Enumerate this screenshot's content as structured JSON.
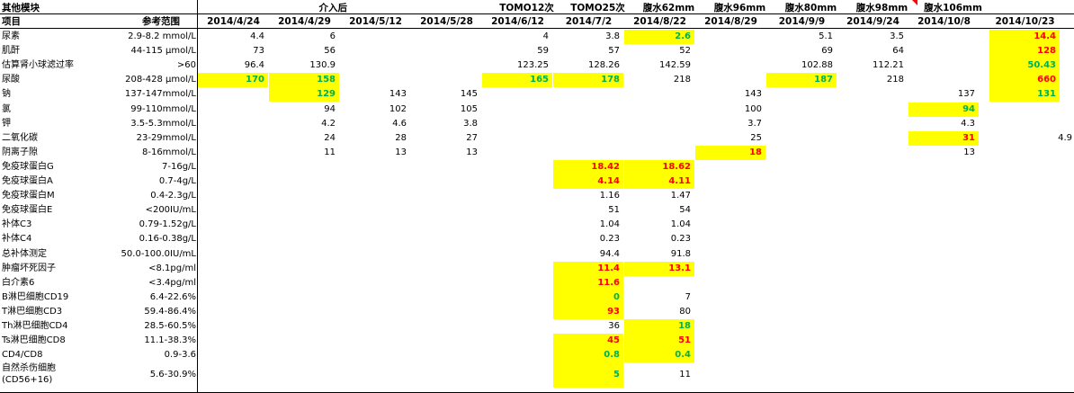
{
  "sheet": {
    "corner_title": "其他模块",
    "item_header": "项目",
    "range_header": "参考范围",
    "top_labels": [
      "",
      "介入后",
      "",
      "",
      "TOMO12次",
      "TOMO25次",
      "腹水62mm",
      "腹水96mm",
      "腹水80mm",
      "腹水98mm",
      "腹水106mm",
      ""
    ],
    "dates": [
      "2014/4/24",
      "2014/4/29",
      "2014/5/12",
      "2014/5/28",
      "2014/6/12",
      "2014/7/2",
      "2014/8/22",
      "2014/8/29",
      "2014/9/9",
      "2014/9/24",
      "2014/10/8",
      "2014/10/23"
    ],
    "extra_column_values": [
      "",
      "",
      "",
      "",
      "",
      "",
      "",
      "4.9",
      "",
      "",
      "",
      "",
      "",
      "",
      "",
      "",
      "",
      "",
      "",
      "",
      "",
      "",
      "",
      "",
      "",
      ""
    ],
    "highlight_color": "#ffff00",
    "high_color": "#ff0000",
    "low_color": "#00b050"
  },
  "rows": [
    {
      "name": "尿素",
      "range": "2.9-8.2 mmol/L",
      "cells": [
        {
          "v": "4.4"
        },
        {
          "v": "6"
        },
        {
          "v": ""
        },
        {
          "v": ""
        },
        {
          "v": "4"
        },
        {
          "v": "3.8"
        },
        {
          "v": "2.6",
          "f": "low"
        },
        {
          "v": ""
        },
        {
          "v": "5.1"
        },
        {
          "v": "3.5"
        },
        {
          "v": ""
        },
        {
          "v": "14.4",
          "f": "high"
        }
      ]
    },
    {
      "name": "肌酐",
      "range": "44-115 μmol/L",
      "cells": [
        {
          "v": "73"
        },
        {
          "v": "56"
        },
        {
          "v": ""
        },
        {
          "v": ""
        },
        {
          "v": "59"
        },
        {
          "v": "57"
        },
        {
          "v": "52"
        },
        {
          "v": ""
        },
        {
          "v": "69"
        },
        {
          "v": "64"
        },
        {
          "v": ""
        },
        {
          "v": "128",
          "f": "high"
        }
      ]
    },
    {
      "name": "估算肾小球滤过率",
      "range": ">60",
      "cells": [
        {
          "v": "96.4"
        },
        {
          "v": "130.9"
        },
        {
          "v": ""
        },
        {
          "v": ""
        },
        {
          "v": "123.25"
        },
        {
          "v": "128.26"
        },
        {
          "v": "142.59"
        },
        {
          "v": ""
        },
        {
          "v": "102.88"
        },
        {
          "v": "112.21"
        },
        {
          "v": ""
        },
        {
          "v": "50.43",
          "f": "low"
        }
      ]
    },
    {
      "name": "尿酸",
      "range": "208-428 μmol/L",
      "cells": [
        {
          "v": "170",
          "f": "low"
        },
        {
          "v": "158",
          "f": "low"
        },
        {
          "v": ""
        },
        {
          "v": ""
        },
        {
          "v": "165",
          "f": "low"
        },
        {
          "v": "178",
          "f": "low"
        },
        {
          "v": "218"
        },
        {
          "v": ""
        },
        {
          "v": "187",
          "f": "low"
        },
        {
          "v": "218"
        },
        {
          "v": ""
        },
        {
          "v": "660",
          "f": "high"
        }
      ]
    },
    {
      "name": "钠",
      "range": "137-147mmol/L",
      "cells": [
        {
          "v": ""
        },
        {
          "v": "129",
          "f": "low"
        },
        {
          "v": "143"
        },
        {
          "v": "145"
        },
        {
          "v": ""
        },
        {
          "v": ""
        },
        {
          "v": ""
        },
        {
          "v": "143"
        },
        {
          "v": ""
        },
        {
          "v": ""
        },
        {
          "v": "137"
        },
        {
          "v": "131",
          "f": "low"
        }
      ]
    },
    {
      "name": "氯",
      "range": "99-110mmol/L",
      "cells": [
        {
          "v": ""
        },
        {
          "v": "94"
        },
        {
          "v": "102"
        },
        {
          "v": "105"
        },
        {
          "v": ""
        },
        {
          "v": ""
        },
        {
          "v": ""
        },
        {
          "v": "100"
        },
        {
          "v": ""
        },
        {
          "v": ""
        },
        {
          "v": "94",
          "f": "low"
        },
        {
          "v": ""
        }
      ]
    },
    {
      "name": "钾",
      "range": "3.5-5.3mmol/L",
      "cells": [
        {
          "v": ""
        },
        {
          "v": "4.2"
        },
        {
          "v": "4.6"
        },
        {
          "v": "3.8"
        },
        {
          "v": ""
        },
        {
          "v": ""
        },
        {
          "v": ""
        },
        {
          "v": "3.7"
        },
        {
          "v": ""
        },
        {
          "v": ""
        },
        {
          "v": "4.3"
        },
        {
          "v": ""
        }
      ]
    },
    {
      "name": "二氧化碳",
      "range": "23-29mmol/L",
      "cells": [
        {
          "v": ""
        },
        {
          "v": "24"
        },
        {
          "v": "28"
        },
        {
          "v": "27"
        },
        {
          "v": ""
        },
        {
          "v": ""
        },
        {
          "v": ""
        },
        {
          "v": "25"
        },
        {
          "v": ""
        },
        {
          "v": ""
        },
        {
          "v": "31",
          "f": "high"
        },
        {
          "v": ""
        }
      ]
    },
    {
      "name": "阴离子隙",
      "range": "8-16mmol/L",
      "cells": [
        {
          "v": ""
        },
        {
          "v": "11"
        },
        {
          "v": "13"
        },
        {
          "v": "13"
        },
        {
          "v": ""
        },
        {
          "v": ""
        },
        {
          "v": ""
        },
        {
          "v": "18",
          "f": "high"
        },
        {
          "v": ""
        },
        {
          "v": ""
        },
        {
          "v": "13"
        },
        {
          "v": ""
        }
      ]
    },
    {
      "name": "免疫球蛋白G",
      "range": "7-16g/L",
      "cells": [
        {
          "v": ""
        },
        {
          "v": ""
        },
        {
          "v": ""
        },
        {
          "v": ""
        },
        {
          "v": ""
        },
        {
          "v": "18.42",
          "f": "high"
        },
        {
          "v": "18.62",
          "f": "high"
        },
        {
          "v": ""
        },
        {
          "v": ""
        },
        {
          "v": ""
        },
        {
          "v": ""
        },
        {
          "v": ""
        }
      ]
    },
    {
      "name": "免疫球蛋白A",
      "range": "0.7-4g/L",
      "cells": [
        {
          "v": ""
        },
        {
          "v": ""
        },
        {
          "v": ""
        },
        {
          "v": ""
        },
        {
          "v": ""
        },
        {
          "v": "4.14",
          "f": "high"
        },
        {
          "v": "4.11",
          "f": "high"
        },
        {
          "v": ""
        },
        {
          "v": ""
        },
        {
          "v": ""
        },
        {
          "v": ""
        },
        {
          "v": ""
        }
      ]
    },
    {
      "name": "免疫球蛋白M",
      "range": "0.4-2.3g/L",
      "cells": [
        {
          "v": ""
        },
        {
          "v": ""
        },
        {
          "v": ""
        },
        {
          "v": ""
        },
        {
          "v": ""
        },
        {
          "v": "1.16"
        },
        {
          "v": "1.47"
        },
        {
          "v": ""
        },
        {
          "v": ""
        },
        {
          "v": ""
        },
        {
          "v": ""
        },
        {
          "v": ""
        }
      ]
    },
    {
      "name": "免疫球蛋白E",
      "range": "<200IU/mL",
      "cells": [
        {
          "v": ""
        },
        {
          "v": ""
        },
        {
          "v": ""
        },
        {
          "v": ""
        },
        {
          "v": ""
        },
        {
          "v": "51"
        },
        {
          "v": "54"
        },
        {
          "v": ""
        },
        {
          "v": ""
        },
        {
          "v": ""
        },
        {
          "v": ""
        },
        {
          "v": ""
        }
      ]
    },
    {
      "name": "补体C3",
      "range": "0.79-1.52g/L",
      "cells": [
        {
          "v": ""
        },
        {
          "v": ""
        },
        {
          "v": ""
        },
        {
          "v": ""
        },
        {
          "v": ""
        },
        {
          "v": "1.04"
        },
        {
          "v": "1.04"
        },
        {
          "v": ""
        },
        {
          "v": ""
        },
        {
          "v": ""
        },
        {
          "v": ""
        },
        {
          "v": ""
        }
      ]
    },
    {
      "name": "补体C4",
      "range": "0.16-0.38g/L",
      "cells": [
        {
          "v": ""
        },
        {
          "v": ""
        },
        {
          "v": ""
        },
        {
          "v": ""
        },
        {
          "v": ""
        },
        {
          "v": "0.23"
        },
        {
          "v": "0.23"
        },
        {
          "v": ""
        },
        {
          "v": ""
        },
        {
          "v": ""
        },
        {
          "v": ""
        },
        {
          "v": ""
        }
      ]
    },
    {
      "name": "总补体测定",
      "range": "50.0-100.0IU/mL",
      "cells": [
        {
          "v": ""
        },
        {
          "v": ""
        },
        {
          "v": ""
        },
        {
          "v": ""
        },
        {
          "v": ""
        },
        {
          "v": "94.4"
        },
        {
          "v": "91.8"
        },
        {
          "v": ""
        },
        {
          "v": ""
        },
        {
          "v": ""
        },
        {
          "v": ""
        },
        {
          "v": ""
        }
      ]
    },
    {
      "name": "肿瘤坏死因子",
      "range": "<8.1pg/ml",
      "cells": [
        {
          "v": ""
        },
        {
          "v": ""
        },
        {
          "v": ""
        },
        {
          "v": ""
        },
        {
          "v": ""
        },
        {
          "v": "11.4",
          "f": "high"
        },
        {
          "v": "13.1",
          "f": "high"
        },
        {
          "v": ""
        },
        {
          "v": ""
        },
        {
          "v": ""
        },
        {
          "v": ""
        },
        {
          "v": ""
        }
      ]
    },
    {
      "name": "白介素6",
      "range": "<3.4pg/ml",
      "cells": [
        {
          "v": ""
        },
        {
          "v": ""
        },
        {
          "v": ""
        },
        {
          "v": ""
        },
        {
          "v": ""
        },
        {
          "v": "11.6",
          "f": "high"
        },
        {
          "v": ""
        },
        {
          "v": ""
        },
        {
          "v": ""
        },
        {
          "v": ""
        },
        {
          "v": ""
        },
        {
          "v": ""
        }
      ]
    },
    {
      "name": "B淋巴细胞CD19",
      "range": "6.4-22.6%",
      "cells": [
        {
          "v": ""
        },
        {
          "v": ""
        },
        {
          "v": ""
        },
        {
          "v": ""
        },
        {
          "v": ""
        },
        {
          "v": "0",
          "f": "low"
        },
        {
          "v": "7"
        },
        {
          "v": ""
        },
        {
          "v": ""
        },
        {
          "v": ""
        },
        {
          "v": ""
        },
        {
          "v": ""
        }
      ]
    },
    {
      "name": "T淋巴细胞CD3",
      "range": "59.4-86.4%",
      "cells": [
        {
          "v": ""
        },
        {
          "v": ""
        },
        {
          "v": ""
        },
        {
          "v": ""
        },
        {
          "v": ""
        },
        {
          "v": "93",
          "f": "high"
        },
        {
          "v": "80"
        },
        {
          "v": ""
        },
        {
          "v": ""
        },
        {
          "v": ""
        },
        {
          "v": ""
        },
        {
          "v": ""
        }
      ]
    },
    {
      "name": "Th淋巴细胞CD4",
      "range": "28.5-60.5%",
      "cells": [
        {
          "v": ""
        },
        {
          "v": ""
        },
        {
          "v": ""
        },
        {
          "v": ""
        },
        {
          "v": ""
        },
        {
          "v": "36"
        },
        {
          "v": "18",
          "f": "low"
        },
        {
          "v": ""
        },
        {
          "v": ""
        },
        {
          "v": ""
        },
        {
          "v": ""
        },
        {
          "v": ""
        }
      ]
    },
    {
      "name": "Ts淋巴细胞CD8",
      "range": "11.1-38.3%",
      "cells": [
        {
          "v": ""
        },
        {
          "v": ""
        },
        {
          "v": ""
        },
        {
          "v": ""
        },
        {
          "v": ""
        },
        {
          "v": "45",
          "f": "high"
        },
        {
          "v": "51",
          "f": "high"
        },
        {
          "v": ""
        },
        {
          "v": ""
        },
        {
          "v": ""
        },
        {
          "v": ""
        },
        {
          "v": ""
        }
      ]
    },
    {
      "name": "CD4/CD8",
      "range": "0.9-3.6",
      "cells": [
        {
          "v": ""
        },
        {
          "v": ""
        },
        {
          "v": ""
        },
        {
          "v": ""
        },
        {
          "v": ""
        },
        {
          "v": "0.8",
          "f": "low"
        },
        {
          "v": "0.4",
          "f": "low"
        },
        {
          "v": ""
        },
        {
          "v": ""
        },
        {
          "v": ""
        },
        {
          "v": ""
        },
        {
          "v": ""
        }
      ]
    },
    {
      "name": "自然杀伤细胞\n(CD56+16)",
      "range": "5.6-30.9%",
      "cells": [
        {
          "v": ""
        },
        {
          "v": ""
        },
        {
          "v": ""
        },
        {
          "v": ""
        },
        {
          "v": ""
        },
        {
          "v": "5",
          "f": "low"
        },
        {
          "v": "11"
        },
        {
          "v": ""
        },
        {
          "v": ""
        },
        {
          "v": ""
        },
        {
          "v": ""
        },
        {
          "v": ""
        }
      ]
    }
  ]
}
